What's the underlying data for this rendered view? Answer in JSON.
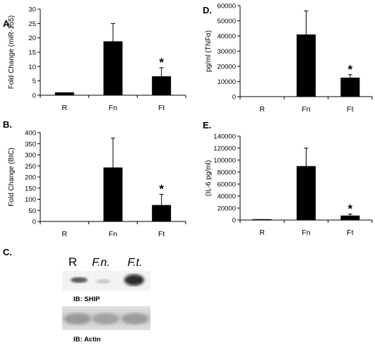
{
  "chart_data": [
    {
      "panel": "A.",
      "type": "bar",
      "categories": [
        "R",
        "Fn",
        "Ft"
      ],
      "values": [
        1,
        18.8,
        6.6
      ],
      "errors": [
        0,
        6.2,
        3.0
      ],
      "significance": [
        "",
        "",
        "*"
      ],
      "ylabel": "Fold Change (miR-155)",
      "ylim": [
        0,
        30
      ],
      "yticks": [
        0,
        5,
        10,
        15,
        20,
        25,
        30
      ]
    },
    {
      "panel": "D.",
      "type": "bar",
      "categories": [
        "R",
        "Fn",
        "Ft"
      ],
      "values": [
        200,
        41000,
        12500
      ],
      "errors": [
        0,
        15500,
        2000
      ],
      "significance": [
        "",
        "",
        "*"
      ],
      "ylabel": "pg/ml (TNFα)",
      "ylim": [
        0,
        60000
      ],
      "yticks": [
        0,
        10000,
        20000,
        30000,
        40000,
        50000,
        60000
      ]
    },
    {
      "panel": "B.",
      "type": "bar",
      "categories": [
        "R",
        "Fn",
        "Ft"
      ],
      "values": [
        1,
        243,
        74
      ],
      "errors": [
        0,
        132,
        48
      ],
      "significance": [
        "",
        "",
        "*"
      ],
      "ylabel": "Fold Change (BIC)",
      "ylim": [
        0,
        400
      ],
      "yticks": [
        0,
        50,
        100,
        150,
        200,
        250,
        300,
        350,
        400
      ]
    },
    {
      "panel": "E.",
      "type": "bar",
      "categories": [
        "R",
        "Fn",
        "Ft"
      ],
      "values": [
        1500,
        90000,
        7500
      ],
      "errors": [
        0,
        30000,
        2500
      ],
      "significance": [
        "",
        "",
        "*"
      ],
      "ylabel": "(IL-6 pg/ml)",
      "ylim": [
        0,
        140000
      ],
      "yticks": [
        0,
        20000,
        40000,
        60000,
        80000,
        100000,
        120000,
        140000
      ]
    }
  ],
  "blot": {
    "panel": "C.",
    "lanes": [
      "R",
      "F.n.",
      "F.t."
    ],
    "ship_label": "IB: SHIP",
    "actin_label": "IB: Actin"
  }
}
